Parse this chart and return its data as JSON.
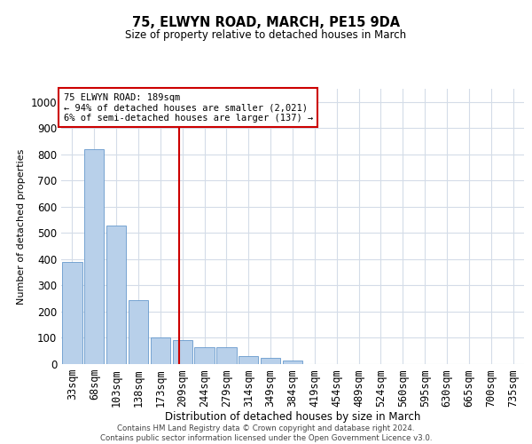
{
  "title": "75, ELWYN ROAD, MARCH, PE15 9DA",
  "subtitle": "Size of property relative to detached houses in March",
  "xlabel": "Distribution of detached houses by size in March",
  "ylabel": "Number of detached properties",
  "bar_labels": [
    "33sqm",
    "68sqm",
    "103sqm",
    "138sqm",
    "173sqm",
    "209sqm",
    "244sqm",
    "279sqm",
    "314sqm",
    "349sqm",
    "384sqm",
    "419sqm",
    "454sqm",
    "489sqm",
    "524sqm",
    "560sqm",
    "595sqm",
    "630sqm",
    "665sqm",
    "700sqm",
    "735sqm"
  ],
  "bar_values": [
    390,
    820,
    530,
    245,
    100,
    90,
    65,
    65,
    30,
    25,
    15,
    0,
    0,
    0,
    0,
    0,
    0,
    0,
    0,
    0,
    0
  ],
  "bar_color": "#b8d0ea",
  "bar_edge_color": "#6699cc",
  "vline_x": 4.87,
  "vline_color": "#cc0000",
  "annotation_text": "75 ELWYN ROAD: 189sqm\n← 94% of detached houses are smaller (2,021)\n6% of semi-detached houses are larger (137) →",
  "annotation_box_color": "#cc0000",
  "ylim": [
    0,
    1050
  ],
  "yticks": [
    0,
    100,
    200,
    300,
    400,
    500,
    600,
    700,
    800,
    900,
    1000
  ],
  "footer_line1": "Contains HM Land Registry data © Crown copyright and database right 2024.",
  "footer_line2": "Contains public sector information licensed under the Open Government Licence v3.0.",
  "background_color": "#ffffff",
  "grid_color": "#d4dce8"
}
